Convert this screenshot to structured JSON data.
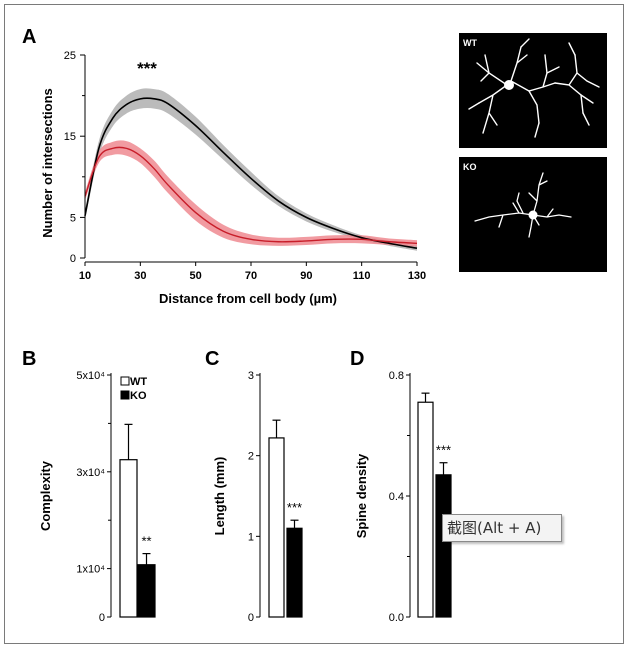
{
  "panels": {
    "a": "A",
    "b": "B",
    "c": "C",
    "d": "D"
  },
  "panel_a": {
    "ylabel": "Number of intersections",
    "xlabel": "Distance from cell body (µm)",
    "significance": "***",
    "image_labels": {
      "wt": "WT",
      "ko": "KO"
    }
  },
  "tooltip": "截图(Alt + A)",
  "colors": {
    "wt_line": "#000000",
    "wt_band": "#b4b4b4",
    "ko_line": "#c81e2a",
    "ko_band": "#ef8a90"
  },
  "chart_data": [
    {
      "type": "line",
      "xlabel": "Distance from cell body (µm)",
      "ylabel": "Number of intersections",
      "xlim": [
        10,
        130
      ],
      "ylim": [
        0,
        25
      ],
      "xticks": [
        10,
        30,
        50,
        70,
        90,
        110,
        130
      ],
      "yticks": [
        0,
        5,
        15,
        25
      ],
      "annotation": "***",
      "x": [
        10,
        15,
        20,
        25,
        30,
        35,
        40,
        50,
        60,
        70,
        80,
        90,
        100,
        110,
        120,
        130
      ],
      "series": [
        {
          "key": "WT",
          "color": "#000000",
          "band": "#b4b4b4",
          "values": [
            5.2,
            13.5,
            17.2,
            18.9,
            19.6,
            19.6,
            19.0,
            16.3,
            13.0,
            9.8,
            7.0,
            5.0,
            3.6,
            2.5,
            1.8,
            1.2
          ],
          "err": [
            0.6,
            0.9,
            1.0,
            1.1,
            1.2,
            1.2,
            1.2,
            1.1,
            0.9,
            0.8,
            0.6,
            0.5,
            0.4,
            0.3,
            0.3,
            0.3
          ]
        },
        {
          "key": "KO",
          "color": "#c81e2a",
          "band": "#ef8a90",
          "values": [
            7.6,
            12.4,
            13.5,
            13.5,
            12.6,
            11.0,
            9.0,
            5.6,
            3.3,
            2.3,
            2.0,
            2.1,
            2.3,
            2.3,
            2.0,
            1.8
          ],
          "err": [
            0.5,
            0.7,
            0.8,
            0.9,
            0.9,
            1.0,
            1.0,
            1.0,
            0.8,
            0.6,
            0.5,
            0.5,
            0.5,
            0.5,
            0.4,
            0.4
          ]
        }
      ]
    },
    {
      "type": "bar",
      "ylabel": "Complexity",
      "yticks": [
        "0",
        "1x10⁴",
        "3x10⁴",
        "5x10⁴"
      ],
      "ylim": [
        0,
        50000
      ],
      "categories": [
        "WT",
        "KO"
      ],
      "values": [
        32500,
        10800
      ],
      "errors": [
        7300,
        2300
      ],
      "significance": "**",
      "legend": [
        "WT",
        "KO"
      ]
    },
    {
      "type": "bar",
      "ylabel": "Length (mm)",
      "yticks": [
        "0",
        "1",
        "2",
        "3"
      ],
      "ylim": [
        0,
        3
      ],
      "categories": [
        "WT",
        "KO"
      ],
      "values": [
        2.22,
        1.1
      ],
      "errors": [
        0.22,
        0.1
      ],
      "significance": "***"
    },
    {
      "type": "bar",
      "ylabel": "Spine density",
      "yticks": [
        "0.0",
        "0.4",
        "0.8"
      ],
      "ylim": [
        0,
        0.8
      ],
      "categories": [
        "WT",
        "KO"
      ],
      "values": [
        0.71,
        0.47
      ],
      "errors": [
        0.03,
        0.04
      ],
      "significance": "***"
    }
  ]
}
